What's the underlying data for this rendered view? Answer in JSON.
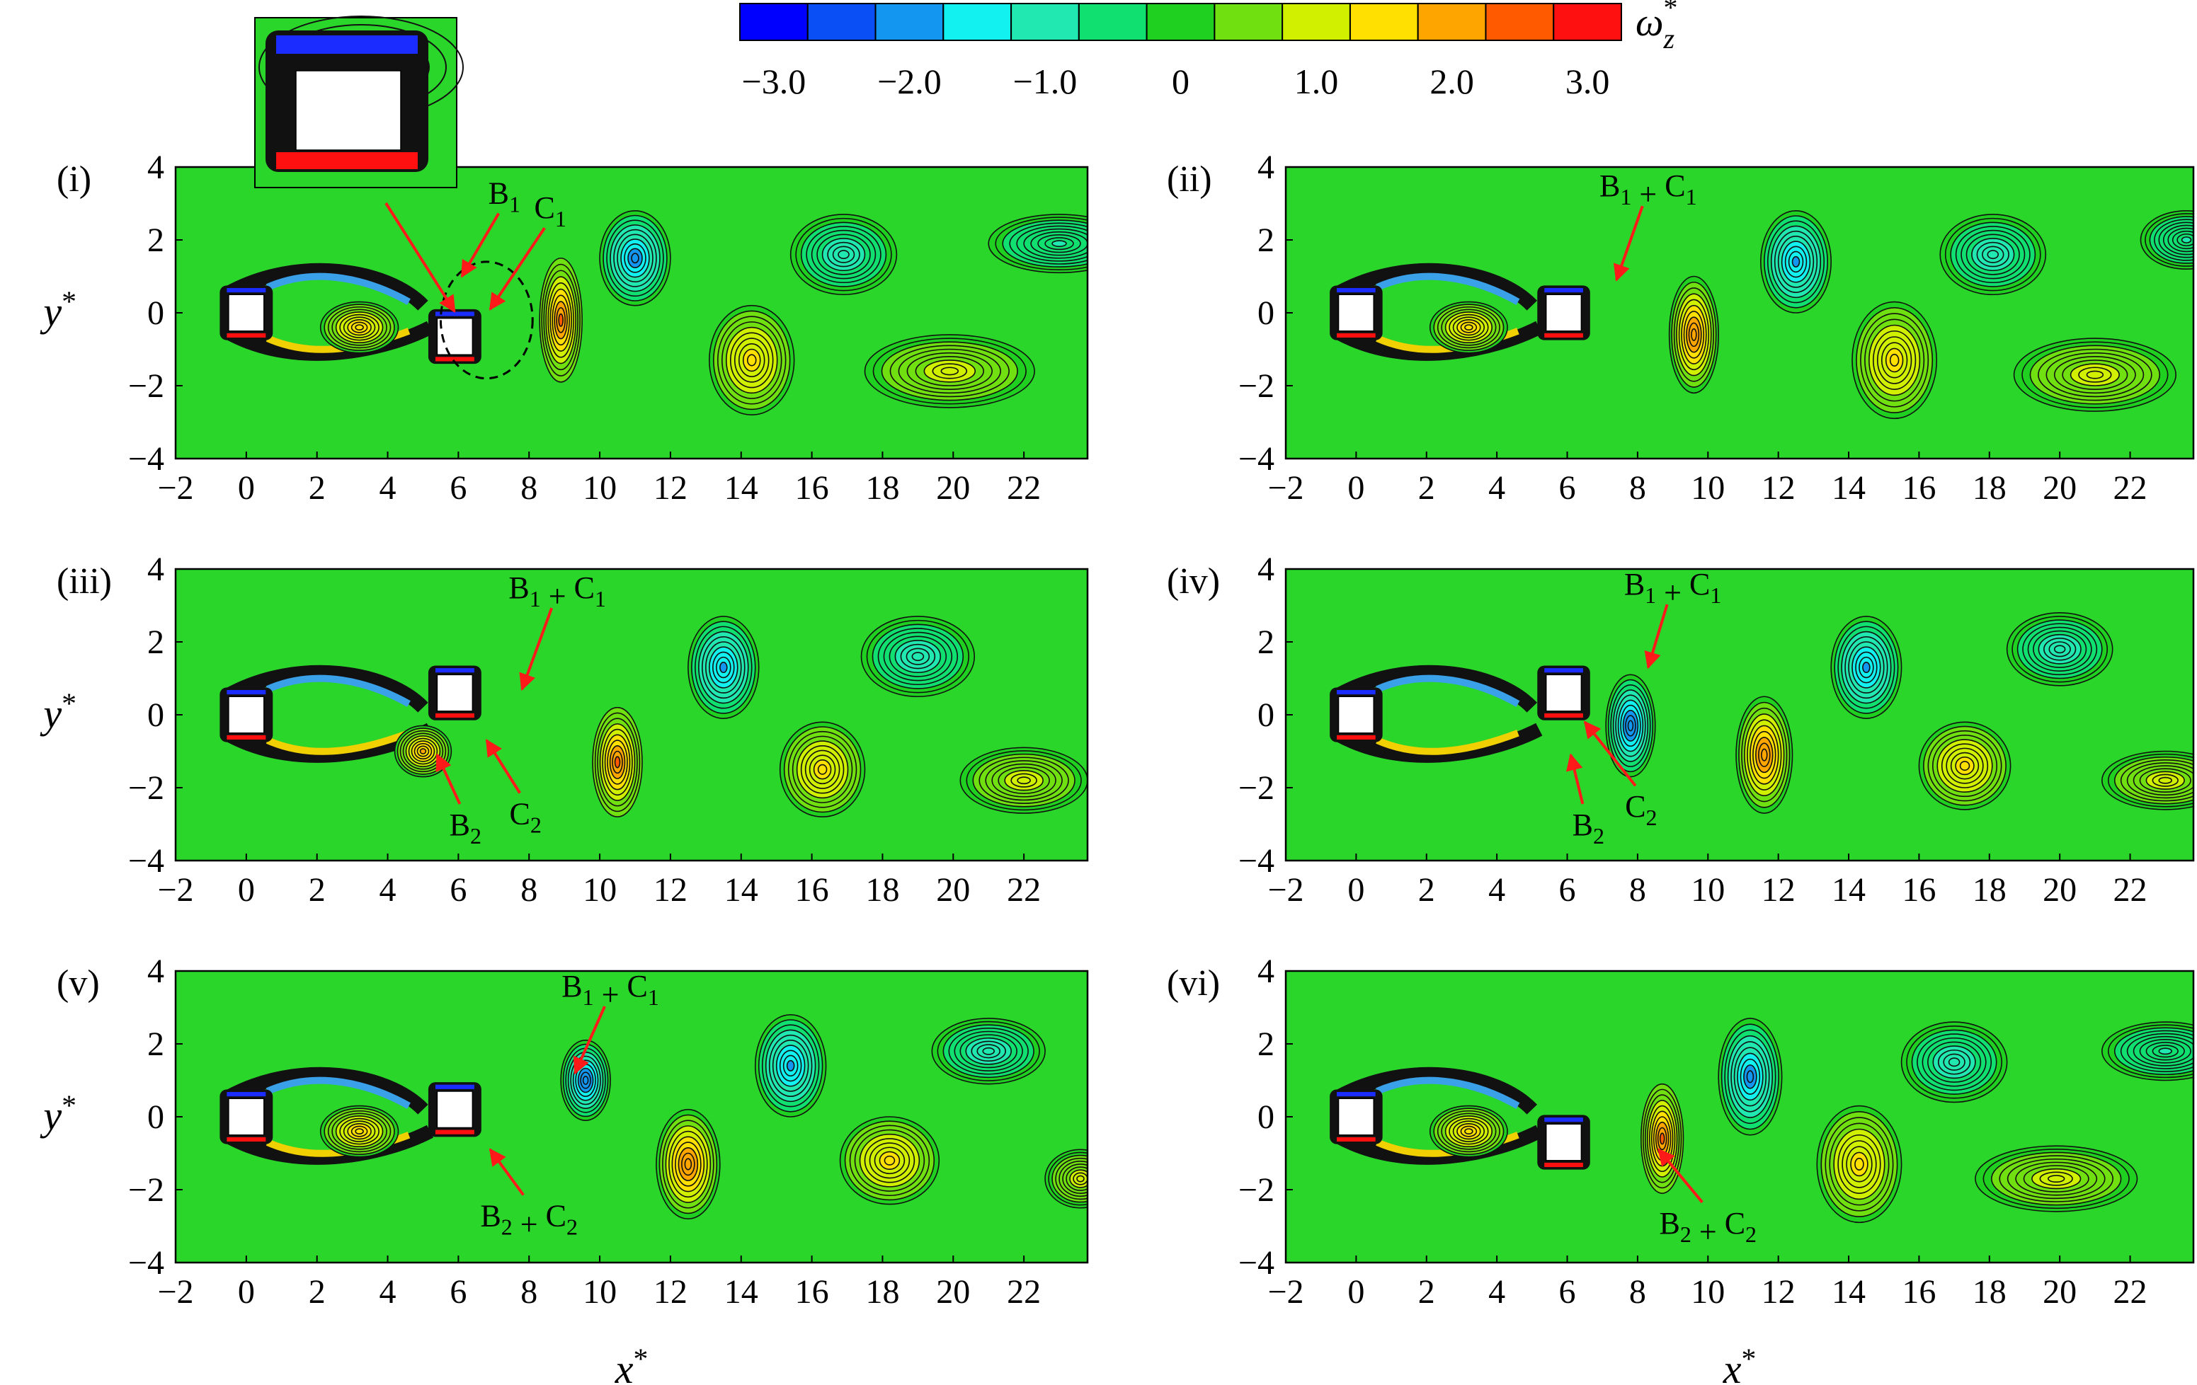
{
  "chart_data": {
    "type": "heatmap",
    "colorbar": {
      "label": "ω",
      "label_sub": "z",
      "label_sup": "*",
      "range": [
        -3.25,
        3.25
      ],
      "tick_values": [
        -3.0,
        -2.0,
        -1.0,
        0,
        1.0,
        2.0,
        3.0
      ],
      "tick_labels": [
        "−3.0",
        "−2.0",
        "−1.0",
        "0",
        "1.0",
        "2.0",
        "3.0"
      ],
      "colors": [
        "#0000ff",
        "#0a4ef5",
        "#1296f0",
        "#12f0f0",
        "#20e8b0",
        "#10e070",
        "#20d020",
        "#70e010",
        "#d0f000",
        "#ffe000",
        "#ffa500",
        "#ff5a00",
        "#ff1010"
      ]
    },
    "xlim": [
      -2,
      23.8
    ],
    "ylim": [
      -4,
      4
    ],
    "x_ticks": [
      -2,
      0,
      2,
      4,
      6,
      8,
      10,
      12,
      14,
      16,
      18,
      20,
      22
    ],
    "x_tick_labels": [
      "−2",
      "0",
      "2",
      "4",
      "6",
      "8",
      "10",
      "12",
      "14",
      "16",
      "18",
      "20",
      "22"
    ],
    "y_ticks": [
      -4,
      -2,
      0,
      2,
      4
    ],
    "y_tick_labels": [
      "−4",
      "−2",
      "0",
      "2",
      "4"
    ],
    "xlabel": "x",
    "ylabel": "y",
    "axis_label_sup": "*",
    "field_color": "#2ad62a",
    "cylinder_size": 1,
    "panels": [
      {
        "label": "(i)",
        "cylinders": [
          {
            "x": 0,
            "y": 0
          },
          {
            "x": 5.9,
            "y": -0.65
          }
        ],
        "vortices": [
          {
            "x": 11.0,
            "y": 1.5,
            "rx": 1.0,
            "ry": 1.3,
            "sign": -1,
            "peak": 2.2
          },
          {
            "x": 14.3,
            "y": -1.3,
            "rx": 1.2,
            "ry": 1.5,
            "sign": 1,
            "peak": 1.7
          },
          {
            "x": 16.9,
            "y": 1.6,
            "rx": 1.5,
            "ry": 1.1,
            "sign": -1,
            "peak": 1.3
          },
          {
            "x": 19.9,
            "y": -1.6,
            "rx": 2.4,
            "ry": 1.0,
            "sign": 1,
            "peak": 1.1
          },
          {
            "x": 23.0,
            "y": 1.9,
            "rx": 2.0,
            "ry": 0.8,
            "sign": -1,
            "peak": 0.9
          },
          {
            "x": 8.9,
            "y": -0.2,
            "rx": 0.6,
            "ry": 1.7,
            "sign": 1,
            "peak": 2.6
          },
          {
            "x": 3.2,
            "y": -0.4,
            "rx": 1.1,
            "ry": 0.7,
            "sign": 1,
            "peak": 1.8
          }
        ],
        "annotations": [
          {
            "parts": [
              [
                "B",
                "1"
              ]
            ],
            "text_x": 7.3,
            "text_y": 3.0,
            "arrow_x": 6.1,
            "arrow_y": 1.0
          },
          {
            "parts": [
              [
                "C",
                "1"
              ]
            ],
            "text_x": 8.6,
            "text_y": 2.6,
            "arrow_x": 6.9,
            "arrow_y": 0.1
          }
        ],
        "inset": true
      },
      {
        "label": "(ii)",
        "cylinders": [
          {
            "x": 0,
            "y": 0
          },
          {
            "x": 5.9,
            "y": 0
          }
        ],
        "vortices": [
          {
            "x": 12.5,
            "y": 1.4,
            "rx": 1.0,
            "ry": 1.4,
            "sign": -1,
            "peak": 2.1
          },
          {
            "x": 15.3,
            "y": -1.3,
            "rx": 1.2,
            "ry": 1.6,
            "sign": 1,
            "peak": 1.7
          },
          {
            "x": 18.1,
            "y": 1.6,
            "rx": 1.5,
            "ry": 1.1,
            "sign": -1,
            "peak": 1.3
          },
          {
            "x": 21.0,
            "y": -1.7,
            "rx": 2.3,
            "ry": 1.0,
            "sign": 1,
            "peak": 1.1
          },
          {
            "x": 23.6,
            "y": 2.0,
            "rx": 1.3,
            "ry": 0.8,
            "sign": -1,
            "peak": 0.9
          },
          {
            "x": 9.6,
            "y": -0.6,
            "rx": 0.7,
            "ry": 1.6,
            "sign": 1,
            "peak": 2.4
          },
          {
            "x": 3.2,
            "y": -0.4,
            "rx": 1.1,
            "ry": 0.7,
            "sign": 1,
            "peak": 1.8
          }
        ],
        "annotations": [
          {
            "parts": [
              [
                "B",
                "1"
              ],
              [
                "+",
                ""
              ],
              [
                "C",
                "1"
              ]
            ],
            "text_x": 8.3,
            "text_y": 3.2,
            "arrow_x": 7.4,
            "arrow_y": 0.9
          }
        ],
        "inset": false
      },
      {
        "label": "(iii)",
        "cylinders": [
          {
            "x": 0,
            "y": 0
          },
          {
            "x": 5.9,
            "y": 0.6
          }
        ],
        "vortices": [
          {
            "x": 13.5,
            "y": 1.3,
            "rx": 1.0,
            "ry": 1.4,
            "sign": -1,
            "peak": 2.1
          },
          {
            "x": 16.3,
            "y": -1.5,
            "rx": 1.2,
            "ry": 1.3,
            "sign": 1,
            "peak": 1.7
          },
          {
            "x": 19.0,
            "y": 1.6,
            "rx": 1.6,
            "ry": 1.1,
            "sign": -1,
            "peak": 1.3
          },
          {
            "x": 22.0,
            "y": -1.8,
            "rx": 1.8,
            "ry": 0.9,
            "sign": 1,
            "peak": 1.1
          },
          {
            "x": 10.5,
            "y": -1.3,
            "rx": 0.7,
            "ry": 1.5,
            "sign": 1,
            "peak": 2.5
          },
          {
            "x": 5.0,
            "y": -1.0,
            "rx": 0.8,
            "ry": 0.7,
            "sign": 1,
            "peak": 2.0
          }
        ],
        "annotations": [
          {
            "parts": [
              [
                "B",
                "1"
              ],
              [
                "+",
                ""
              ],
              [
                "C",
                "1"
              ]
            ],
            "text_x": 8.8,
            "text_y": 3.2,
            "arrow_x": 7.8,
            "arrow_y": 0.7
          },
          {
            "parts": [
              [
                "B",
                "2"
              ]
            ],
            "text_x": 6.2,
            "text_y": -3.3,
            "arrow_x": 5.4,
            "arrow_y": -1.1
          },
          {
            "parts": [
              [
                "C",
                "2"
              ]
            ],
            "text_x": 7.9,
            "text_y": -3.0,
            "arrow_x": 6.8,
            "arrow_y": -0.7
          }
        ],
        "inset": false
      },
      {
        "label": "(iv)",
        "cylinders": [
          {
            "x": 0,
            "y": 0
          },
          {
            "x": 5.9,
            "y": 0.6
          }
        ],
        "vortices": [
          {
            "x": 14.5,
            "y": 1.3,
            "rx": 1.0,
            "ry": 1.4,
            "sign": -1,
            "peak": 2.1
          },
          {
            "x": 17.3,
            "y": -1.4,
            "rx": 1.3,
            "ry": 1.2,
            "sign": 1,
            "peak": 1.7
          },
          {
            "x": 20.0,
            "y": 1.8,
            "rx": 1.5,
            "ry": 1.0,
            "sign": -1,
            "peak": 1.3
          },
          {
            "x": 23.0,
            "y": -1.8,
            "rx": 1.8,
            "ry": 0.8,
            "sign": 1,
            "peak": 1.1
          },
          {
            "x": 11.6,
            "y": -1.1,
            "rx": 0.8,
            "ry": 1.6,
            "sign": 1,
            "peak": 2.4
          },
          {
            "x": 7.8,
            "y": -0.3,
            "rx": 0.7,
            "ry": 1.4,
            "sign": -1,
            "peak": 2.4
          }
        ],
        "annotations": [
          {
            "parts": [
              [
                "B",
                "1"
              ],
              [
                "+",
                ""
              ],
              [
                "C",
                "1"
              ]
            ],
            "text_x": 9.0,
            "text_y": 3.3,
            "arrow_x": 8.3,
            "arrow_y": 1.3
          },
          {
            "parts": [
              [
                "B",
                "2"
              ]
            ],
            "text_x": 6.6,
            "text_y": -3.3,
            "arrow_x": 6.1,
            "arrow_y": -1.1
          },
          {
            "parts": [
              [
                "C",
                "2"
              ]
            ],
            "text_x": 8.1,
            "text_y": -2.8,
            "arrow_x": 6.5,
            "arrow_y": -0.2
          }
        ],
        "inset": false
      },
      {
        "label": "(v)",
        "cylinders": [
          {
            "x": 0,
            "y": 0
          },
          {
            "x": 5.9,
            "y": 0.2
          }
        ],
        "vortices": [
          {
            "x": 15.4,
            "y": 1.4,
            "rx": 1.0,
            "ry": 1.4,
            "sign": -1,
            "peak": 2.1
          },
          {
            "x": 18.2,
            "y": -1.2,
            "rx": 1.4,
            "ry": 1.2,
            "sign": 1,
            "peak": 1.7
          },
          {
            "x": 21.0,
            "y": 1.8,
            "rx": 1.6,
            "ry": 0.9,
            "sign": -1,
            "peak": 1.3
          },
          {
            "x": 23.6,
            "y": -1.7,
            "rx": 1.0,
            "ry": 0.8,
            "sign": 1,
            "peak": 1.1
          },
          {
            "x": 12.5,
            "y": -1.3,
            "rx": 0.9,
            "ry": 1.5,
            "sign": 1,
            "peak": 2.4
          },
          {
            "x": 9.6,
            "y": 1.0,
            "rx": 0.7,
            "ry": 1.1,
            "sign": -1,
            "peak": 2.4
          },
          {
            "x": 3.2,
            "y": -0.4,
            "rx": 1.1,
            "ry": 0.7,
            "sign": 1,
            "peak": 1.8
          }
        ],
        "annotations": [
          {
            "parts": [
              [
                "B",
                "1"
              ],
              [
                "+",
                ""
              ],
              [
                "C",
                "1"
              ]
            ],
            "text_x": 10.3,
            "text_y": 3.3,
            "arrow_x": 9.3,
            "arrow_y": 1.2
          },
          {
            "parts": [
              [
                "B",
                "2"
              ],
              [
                "+",
                ""
              ],
              [
                "C",
                "2"
              ]
            ],
            "text_x": 8.0,
            "text_y": -3.0,
            "arrow_x": 6.9,
            "arrow_y": -0.9
          }
        ],
        "inset": false
      },
      {
        "label": "(vi)",
        "cylinders": [
          {
            "x": 0,
            "y": 0
          },
          {
            "x": 5.9,
            "y": -0.7
          }
        ],
        "vortices": [
          {
            "x": 11.2,
            "y": 1.1,
            "rx": 0.9,
            "ry": 1.6,
            "sign": -1,
            "peak": 2.2
          },
          {
            "x": 14.3,
            "y": -1.3,
            "rx": 1.2,
            "ry": 1.6,
            "sign": 1,
            "peak": 1.7
          },
          {
            "x": 17.0,
            "y": 1.5,
            "rx": 1.5,
            "ry": 1.1,
            "sign": -1,
            "peak": 1.3
          },
          {
            "x": 19.9,
            "y": -1.7,
            "rx": 2.3,
            "ry": 0.9,
            "sign": 1,
            "peak": 1.1
          },
          {
            "x": 23.0,
            "y": 1.8,
            "rx": 1.8,
            "ry": 0.8,
            "sign": -1,
            "peak": 0.9
          },
          {
            "x": 8.7,
            "y": -0.6,
            "rx": 0.6,
            "ry": 1.5,
            "sign": 1,
            "peak": 2.6
          },
          {
            "x": 3.2,
            "y": -0.4,
            "rx": 1.1,
            "ry": 0.7,
            "sign": 1,
            "peak": 1.8
          }
        ],
        "annotations": [
          {
            "parts": [
              [
                "B",
                "2"
              ],
              [
                "+",
                ""
              ],
              [
                "C",
                "2"
              ]
            ],
            "text_x": 10.0,
            "text_y": -3.2,
            "arrow_x": 8.6,
            "arrow_y": -0.9
          }
        ],
        "inset": false
      }
    ]
  }
}
